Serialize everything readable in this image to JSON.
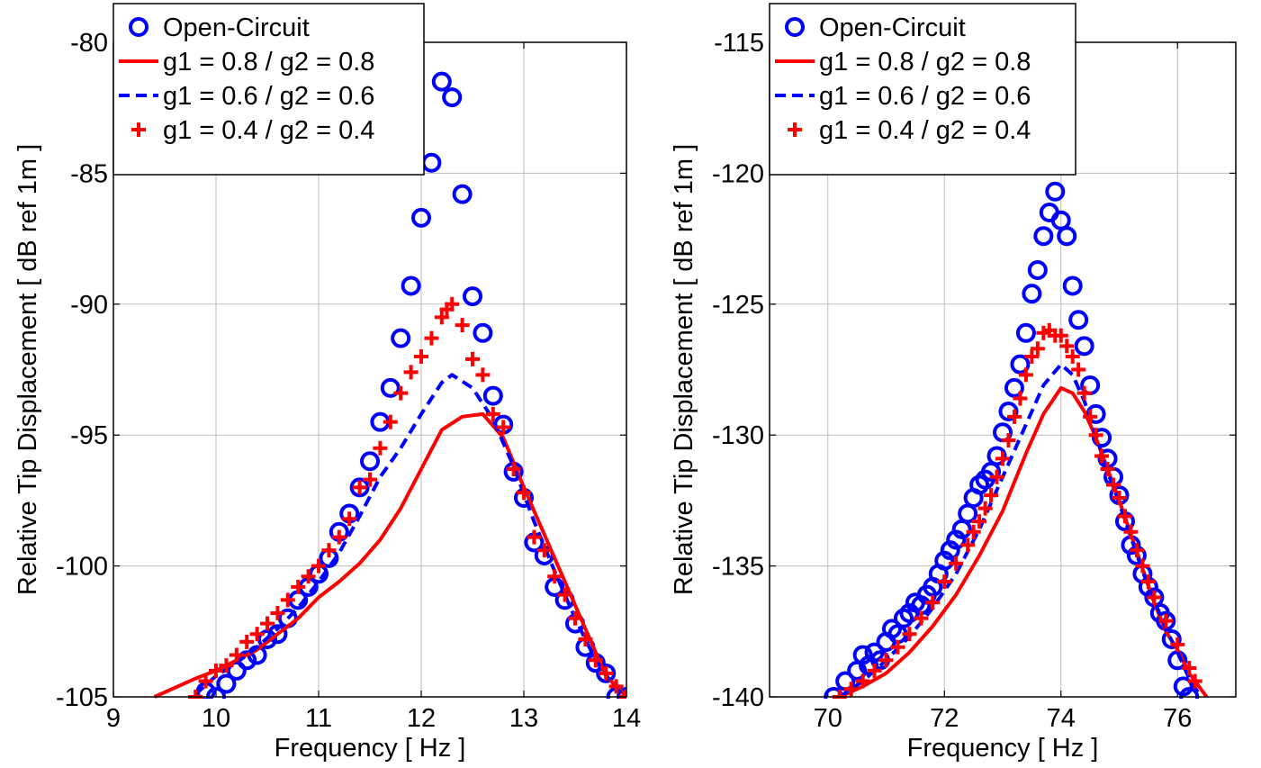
{
  "chart_data": [
    {
      "type": "line",
      "xlabel": "Frequency [ Hz ]",
      "ylabel": "Relative Tip Displacement [ dB ref 1m ]",
      "xlim": [
        9,
        14
      ],
      "ylim": [
        -105,
        -80
      ],
      "xticks": [
        "9",
        "10",
        "11",
        "12",
        "13",
        "14"
      ],
      "yticks": [
        "-105",
        "-100",
        "-95",
        "-90",
        "-85",
        "-80"
      ],
      "grid": true,
      "legend_position": "top-left",
      "series": [
        {
          "name": "Open-Circuit",
          "style": "circle-marker",
          "color": "#0000ff",
          "x": [
            9.9,
            10.0,
            10.1,
            10.2,
            10.3,
            10.4,
            10.5,
            10.6,
            10.7,
            10.8,
            10.9,
            11.0,
            11.1,
            11.2,
            11.3,
            11.4,
            11.5,
            11.6,
            11.7,
            11.8,
            11.9,
            12.0,
            12.1,
            12.2,
            12.3,
            12.4,
            12.5,
            12.6,
            12.7,
            12.8,
            12.9,
            13.0,
            13.1,
            13.2,
            13.3,
            13.4,
            13.5,
            13.6,
            13.7,
            13.8,
            13.9,
            14.0
          ],
          "y": [
            -104.8,
            -105.0,
            -104.5,
            -104.0,
            -103.6,
            -103.4,
            -102.8,
            -102.6,
            -102.0,
            -101.3,
            -100.8,
            -100.3,
            -99.7,
            -98.7,
            -98.0,
            -97.0,
            -96.0,
            -94.5,
            -93.2,
            -91.3,
            -89.3,
            -86.7,
            -84.6,
            -81.5,
            -82.1,
            -85.8,
            -89.7,
            -91.1,
            -93.5,
            -94.6,
            -96.4,
            -97.4,
            -99.1,
            -99.6,
            -100.8,
            -101.3,
            -102.2,
            -103.1,
            -103.7,
            -104.1,
            -105.0,
            -105.0
          ]
        },
        {
          "name": "g1 = 0.8 / g2 = 0.8",
          "style": "solid",
          "color": "#ff0000",
          "x": [
            9.4,
            9.8,
            10.0,
            10.2,
            10.4,
            10.6,
            10.8,
            11.0,
            11.2,
            11.4,
            11.6,
            11.8,
            12.0,
            12.2,
            12.4,
            12.6,
            12.8,
            13.0,
            13.2,
            13.4,
            13.6,
            13.8,
            14.0
          ],
          "y": [
            -105.0,
            -104.3,
            -104.0,
            -103.6,
            -103.2,
            -102.6,
            -102.0,
            -101.2,
            -100.6,
            -99.9,
            -99.0,
            -97.8,
            -96.3,
            -94.8,
            -94.3,
            -94.2,
            -95.1,
            -97.0,
            -98.8,
            -100.6,
            -102.4,
            -104.2,
            -105.0
          ]
        },
        {
          "name": "g1 = 0.6 / g2 = 0.6",
          "style": "dashed",
          "color": "#0000ff",
          "x": [
            9.8,
            10.0,
            10.2,
            10.4,
            10.6,
            10.8,
            11.0,
            11.2,
            11.4,
            11.6,
            11.8,
            12.0,
            12.2,
            12.3,
            12.5,
            12.7,
            12.9,
            13.1,
            13.3,
            13.5,
            13.7,
            13.9,
            14.0
          ],
          "y": [
            -104.9,
            -104.2,
            -103.7,
            -103.1,
            -102.4,
            -101.6,
            -100.6,
            -99.5,
            -98.1,
            -96.6,
            -95.5,
            -94.2,
            -93.0,
            -92.7,
            -93.2,
            -94.4,
            -96.2,
            -98.3,
            -100.2,
            -102.0,
            -103.6,
            -104.7,
            -105.0
          ]
        },
        {
          "name": "g1 = 0.4 / g2 = 0.4",
          "style": "plus-marker",
          "color": "#ff0000",
          "x": [
            9.8,
            9.9,
            10.0,
            10.1,
            10.2,
            10.3,
            10.4,
            10.5,
            10.6,
            10.7,
            10.8,
            10.9,
            11.0,
            11.1,
            11.2,
            11.3,
            11.4,
            11.5,
            11.6,
            11.7,
            11.8,
            11.9,
            12.0,
            12.1,
            12.2,
            12.25,
            12.3,
            12.4,
            12.5,
            12.6,
            12.7,
            12.8,
            12.9,
            13.0,
            13.1,
            13.2,
            13.3,
            13.4,
            13.5,
            13.6,
            13.7,
            13.8,
            13.9,
            14.0
          ],
          "y": [
            -105.0,
            -104.4,
            -104.0,
            -103.8,
            -103.4,
            -102.9,
            -102.6,
            -102.2,
            -101.8,
            -101.3,
            -100.8,
            -100.4,
            -100.0,
            -99.4,
            -98.9,
            -98.2,
            -97.0,
            -96.7,
            -95.5,
            -94.5,
            -93.4,
            -92.6,
            -92.0,
            -91.3,
            -90.5,
            -90.2,
            -90.0,
            -90.8,
            -92.1,
            -92.7,
            -94.2,
            -94.7,
            -96.3,
            -97.2,
            -98.9,
            -99.4,
            -100.4,
            -101.1,
            -102.0,
            -102.8,
            -103.6,
            -104.1,
            -104.6,
            -105.0
          ]
        }
      ]
    },
    {
      "type": "line",
      "xlabel": "Frequency [ Hz ]",
      "ylabel": "Relative Tip Displacement [ dB ref 1m ]",
      "xlim": [
        69,
        77
      ],
      "ylim": [
        -140,
        -115
      ],
      "xticks": [
        "70",
        "72",
        "74",
        "76"
      ],
      "yticks": [
        "-140",
        "-135",
        "-130",
        "-125",
        "-120",
        "-115"
      ],
      "grid": true,
      "legend_position": "top-left",
      "series": [
        {
          "name": "Open-Circuit",
          "style": "circle-marker",
          "color": "#0000ff",
          "x": [
            70.1,
            70.3,
            70.5,
            70.6,
            70.7,
            70.8,
            70.9,
            71.0,
            71.1,
            71.2,
            71.3,
            71.4,
            71.5,
            71.6,
            71.7,
            71.8,
            71.9,
            72.0,
            72.1,
            72.2,
            72.3,
            72.4,
            72.5,
            72.6,
            72.7,
            72.8,
            72.9,
            73.0,
            73.1,
            73.2,
            73.3,
            73.4,
            73.5,
            73.6,
            73.7,
            73.8,
            73.9,
            74.0,
            74.1,
            74.2,
            74.3,
            74.4,
            74.5,
            74.6,
            74.7,
            74.8,
            74.9,
            75.0,
            75.1,
            75.2,
            75.3,
            75.4,
            75.5,
            75.6,
            75.7,
            75.8,
            75.9,
            76.0,
            76.1,
            76.2
          ],
          "y": [
            -140.0,
            -139.4,
            -139.0,
            -138.4,
            -138.8,
            -138.3,
            -138.6,
            -137.9,
            -137.4,
            -137.6,
            -137.0,
            -136.8,
            -136.4,
            -136.5,
            -136.1,
            -135.8,
            -135.3,
            -134.8,
            -134.4,
            -134.0,
            -133.6,
            -133.0,
            -132.4,
            -131.9,
            -131.7,
            -131.4,
            -130.8,
            -129.9,
            -129.1,
            -128.2,
            -127.3,
            -126.1,
            -124.6,
            -123.7,
            -122.4,
            -121.5,
            -120.7,
            -121.8,
            -122.4,
            -124.3,
            -125.6,
            -126.6,
            -128.1,
            -129.2,
            -130.1,
            -130.9,
            -131.6,
            -132.3,
            -133.3,
            -134.2,
            -134.6,
            -135.3,
            -135.8,
            -136.2,
            -136.8,
            -137.1,
            -137.8,
            -138.6,
            -139.6,
            -140.0
          ]
        },
        {
          "name": "g1 = 0.8 / g2 = 0.8",
          "style": "solid",
          "color": "#ff0000",
          "x": [
            70.2,
            70.6,
            71.0,
            71.4,
            71.8,
            72.2,
            72.6,
            73.0,
            73.4,
            73.7,
            74.0,
            74.2,
            74.4,
            74.6,
            74.8,
            75.0,
            75.2,
            75.4,
            75.6,
            75.8,
            76.0,
            76.2,
            76.4,
            76.5
          ],
          "y": [
            -140.0,
            -139.6,
            -139.1,
            -138.3,
            -137.3,
            -136.1,
            -134.6,
            -132.9,
            -130.7,
            -129.2,
            -128.2,
            -128.4,
            -129.1,
            -130.1,
            -131.3,
            -132.5,
            -133.8,
            -135.1,
            -136.4,
            -137.5,
            -138.2,
            -139.1,
            -139.7,
            -140.0
          ]
        },
        {
          "name": "g1 = 0.6 / g2 = 0.6",
          "style": "dashed",
          "color": "#0000ff",
          "x": [
            70.2,
            70.6,
            71.0,
            71.4,
            71.8,
            72.2,
            72.6,
            73.0,
            73.4,
            73.7,
            74.0,
            74.2,
            74.4,
            74.6,
            74.8,
            75.0,
            75.2,
            75.4,
            75.6,
            75.8,
            76.0,
            76.2,
            76.4
          ],
          "y": [
            -140.0,
            -139.4,
            -138.6,
            -137.7,
            -136.6,
            -135.3,
            -133.6,
            -131.6,
            -129.6,
            -128.1,
            -127.3,
            -127.7,
            -128.7,
            -130.0,
            -131.4,
            -132.6,
            -133.9,
            -135.2,
            -136.3,
            -137.4,
            -138.3,
            -139.3,
            -140.0
          ]
        },
        {
          "name": "g1 = 0.4 / g2 = 0.4",
          "style": "plus-marker",
          "color": "#ff0000",
          "x": [
            70.2,
            70.4,
            70.6,
            70.8,
            71.0,
            71.2,
            71.4,
            71.6,
            71.8,
            72.0,
            72.2,
            72.4,
            72.5,
            72.6,
            72.7,
            72.8,
            72.9,
            73.0,
            73.1,
            73.2,
            73.3,
            73.4,
            73.5,
            73.6,
            73.7,
            73.8,
            73.9,
            74.0,
            74.1,
            74.2,
            74.3,
            74.4,
            74.5,
            74.6,
            74.7,
            74.8,
            74.9,
            75.0,
            75.1,
            75.2,
            75.3,
            75.4,
            75.5,
            75.6,
            75.8,
            76.0,
            76.2,
            76.3
          ],
          "y": [
            -140.0,
            -139.7,
            -139.4,
            -139.0,
            -138.6,
            -138.1,
            -137.6,
            -137.0,
            -136.4,
            -135.6,
            -134.9,
            -134.2,
            -133.7,
            -133.3,
            -132.8,
            -132.3,
            -131.6,
            -130.9,
            -130.2,
            -129.3,
            -128.6,
            -127.7,
            -127.0,
            -126.7,
            -126.1,
            -126.0,
            -126.2,
            -126.2,
            -126.6,
            -127.0,
            -127.5,
            -128.4,
            -129.3,
            -130.0,
            -130.8,
            -131.3,
            -131.9,
            -132.4,
            -133.1,
            -133.7,
            -134.4,
            -135.0,
            -135.6,
            -136.2,
            -137.1,
            -138.0,
            -138.9,
            -139.4
          ]
        }
      ]
    }
  ]
}
